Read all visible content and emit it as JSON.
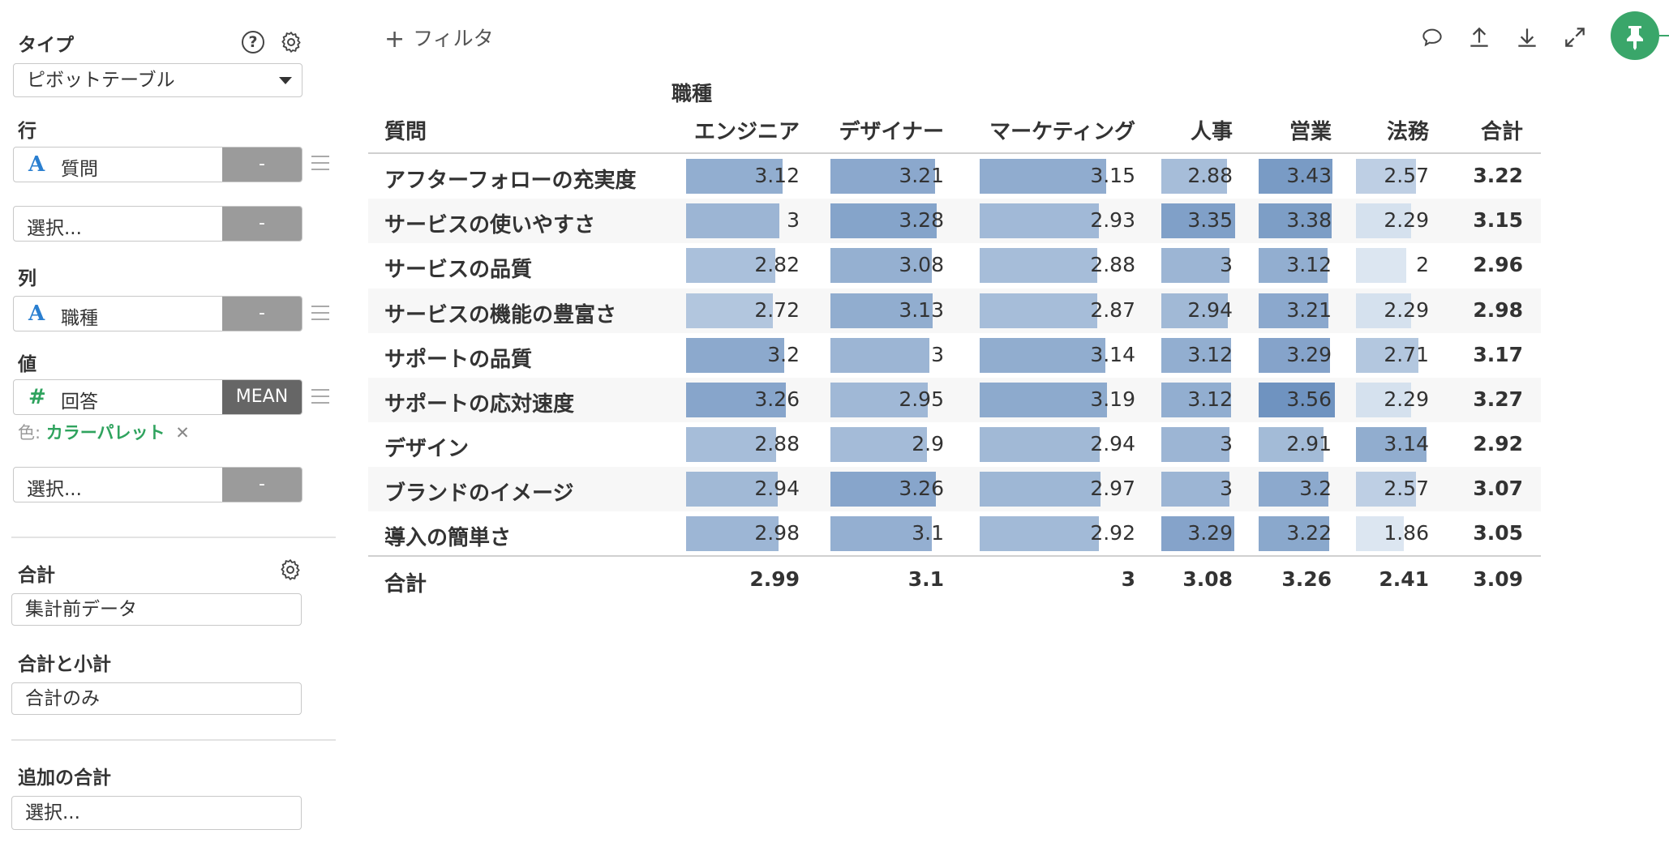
{
  "sidebar": {
    "type_label": "タイプ",
    "type_value": "ピボットテーブル",
    "row_label": "行",
    "row_field": "質問",
    "row_agg": "-",
    "row_select_placeholder": "選択...",
    "row_select_agg": "-",
    "col_label": "列",
    "col_field": "職種",
    "col_agg": "-",
    "value_label": "値",
    "value_field": "回答",
    "value_agg": "MEAN",
    "color_prefix": "色:",
    "color_value": "カラーパレット",
    "color_remove": "✕",
    "value_select_placeholder": "選択...",
    "value_select_agg": "-",
    "total_label": "合計",
    "total_value": "集計前データ",
    "subtotal_label": "合計と小計",
    "subtotal_value": "合計のみ",
    "extra_total_label": "追加の合計",
    "extra_total_placeholder": "選択...",
    "type_glyph_text": "A",
    "type_glyph_number": "#",
    "help_glyph": "?"
  },
  "toolbar": {
    "filter_plus": "+",
    "filter_label": "フィルタ",
    "icons": [
      "comment-icon",
      "upload-icon",
      "download-icon",
      "expand-icon",
      "pin-icon"
    ]
  },
  "colors": {
    "accent_green": "#3aa66a",
    "bar_lightest": "#dce6f1",
    "bar_darkest": "#6f93c0"
  },
  "table": {
    "column_group": "職種",
    "row_header": "質問",
    "columns": [
      "エンジニア",
      "デザイナー",
      "マーケティング",
      "人事",
      "営業",
      "法務"
    ],
    "total_header": "合計",
    "rows": [
      {
        "label": "アフターフォローの充実度",
        "values": [
          "3.12",
          "3.21",
          "3.15",
          "2.88",
          "3.43",
          "2.57"
        ],
        "total": "3.22"
      },
      {
        "label": "サービスの使いやすさ",
        "values": [
          "3",
          "3.28",
          "2.93",
          "3.35",
          "3.38",
          "2.29"
        ],
        "total": "3.15"
      },
      {
        "label": "サービスの品質",
        "values": [
          "2.82",
          "3.08",
          "2.88",
          "3",
          "3.12",
          "2"
        ],
        "total": "2.96"
      },
      {
        "label": "サービスの機能の豊富さ",
        "values": [
          "2.72",
          "3.13",
          "2.87",
          "2.94",
          "3.21",
          "2.29"
        ],
        "total": "2.98"
      },
      {
        "label": "サポートの品質",
        "values": [
          "3.2",
          "3",
          "3.14",
          "3.12",
          "3.29",
          "2.71"
        ],
        "total": "3.17"
      },
      {
        "label": "サポートの応対速度",
        "values": [
          "3.26",
          "2.95",
          "3.19",
          "3.12",
          "3.56",
          "2.29"
        ],
        "total": "3.27"
      },
      {
        "label": "デザイン",
        "values": [
          "2.88",
          "2.9",
          "2.94",
          "3",
          "2.91",
          "3.14"
        ],
        "total": "2.92"
      },
      {
        "label": "ブランドのイメージ",
        "values": [
          "2.94",
          "3.26",
          "2.97",
          "3",
          "3.2",
          "2.57"
        ],
        "total": "3.07"
      },
      {
        "label": "導入の簡単さ",
        "values": [
          "2.98",
          "3.1",
          "2.92",
          "3.29",
          "3.22",
          "1.86"
        ],
        "total": "3.05"
      }
    ],
    "footer_label": "合計",
    "footer_values": [
      "2.99",
      "3.1",
      "3",
      "3.08",
      "3.26",
      "2.41"
    ],
    "footer_total": "3.09"
  }
}
